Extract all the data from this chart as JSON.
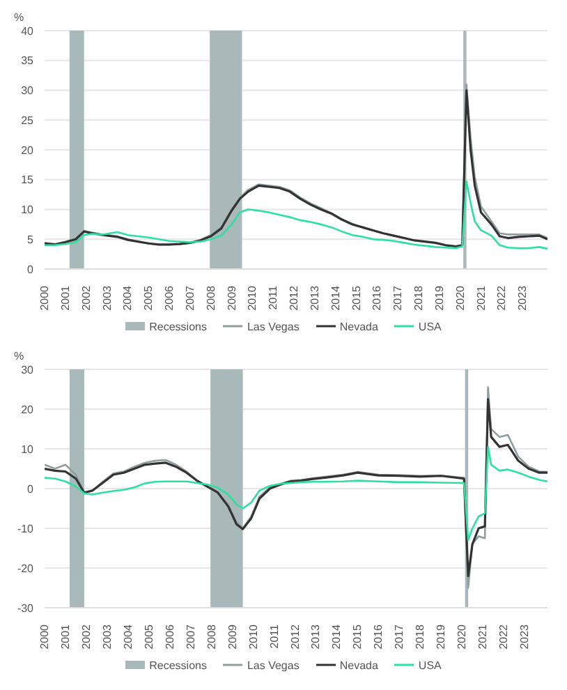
{
  "chart_data": [
    {
      "type": "line",
      "ylabel": "%",
      "legend": "bottom",
      "grid": "y",
      "marker": "none",
      "line_style": "solid",
      "xlim": [
        2000,
        2024.2
      ],
      "xticks": [
        2000,
        2001,
        2002,
        2003,
        2004,
        2005,
        2006,
        2007,
        2008,
        2009,
        2010,
        2011,
        2012,
        2013,
        2014,
        2015,
        2016,
        2017,
        2018,
        2019,
        2020,
        2021,
        2022,
        2023
      ],
      "ylim": [
        0,
        40
      ],
      "yticks": [
        0,
        5,
        10,
        15,
        20,
        25,
        30,
        35,
        40
      ],
      "bands": [
        {
          "axis": "x",
          "from": 2001.2,
          "to": 2001.9,
          "label": "Recessions",
          "color": "#a9b9b9"
        },
        {
          "axis": "x",
          "from": 2007.95,
          "to": 2009.5,
          "color": "#a9b9b9"
        },
        {
          "axis": "x",
          "from": 2020.15,
          "to": 2020.3,
          "color": "#a9b9b9"
        }
      ],
      "x": [
        2000,
        2000.5,
        2001,
        2001.5,
        2001.9,
        2002.3,
        2002.8,
        2003.5,
        2004,
        2004.5,
        2005,
        2005.5,
        2006,
        2006.5,
        2007,
        2007.5,
        2008,
        2008.5,
        2009,
        2009.4,
        2009.8,
        2010.3,
        2010.8,
        2011.3,
        2011.8,
        2012.3,
        2012.8,
        2013.3,
        2013.8,
        2014.3,
        2014.8,
        2015.3,
        2015.8,
        2016.3,
        2016.8,
        2017.3,
        2017.8,
        2018.3,
        2018.8,
        2019.3,
        2019.8,
        2020.1,
        2020.3,
        2020.5,
        2020.7,
        2021,
        2021.5,
        2021.9,
        2022.3,
        2022.8,
        2023.3,
        2023.8,
        2024.2
      ],
      "series": [
        {
          "name": "Las Vegas",
          "color": "#8f9f9f",
          "values": [
            4.4,
            4.2,
            4.6,
            5.1,
            6.4,
            6.1,
            5.8,
            5.5,
            5.0,
            4.6,
            4.3,
            4.1,
            4.1,
            4.2,
            4.4,
            4.9,
            5.7,
            7.0,
            10.0,
            12.0,
            13.3,
            14.2,
            14.0,
            13.8,
            13.2,
            12.0,
            11.0,
            10.2,
            9.4,
            8.4,
            7.6,
            7.0,
            6.5,
            6.0,
            5.6,
            5.2,
            4.8,
            4.6,
            4.4,
            4.0,
            3.8,
            4.0,
            31.0,
            22.0,
            15.5,
            10.5,
            8.0,
            6.0,
            5.8,
            5.8,
            5.8,
            5.8,
            5.2
          ]
        },
        {
          "name": "Nevada",
          "color": "#333333",
          "values": [
            4.3,
            4.1,
            4.5,
            5.0,
            6.3,
            6.0,
            5.7,
            5.4,
            4.9,
            4.6,
            4.3,
            4.1,
            4.1,
            4.2,
            4.4,
            4.8,
            5.5,
            6.8,
            9.8,
            11.8,
            13.0,
            14.0,
            13.8,
            13.6,
            13.0,
            11.8,
            10.8,
            10.0,
            9.3,
            8.3,
            7.5,
            7.0,
            6.5,
            6.0,
            5.6,
            5.2,
            4.8,
            4.6,
            4.4,
            4.0,
            3.8,
            4.0,
            30.0,
            20.0,
            14.0,
            9.5,
            7.5,
            5.5,
            5.2,
            5.4,
            5.5,
            5.6,
            5.0
          ]
        },
        {
          "name": "USA",
          "color": "#2ee0a0",
          "values": [
            4.0,
            4.0,
            4.2,
            4.5,
            5.7,
            5.9,
            5.8,
            6.2,
            5.7,
            5.5,
            5.3,
            5.0,
            4.7,
            4.6,
            4.5,
            4.6,
            5.0,
            5.6,
            7.5,
            9.5,
            10.0,
            9.8,
            9.5,
            9.1,
            8.7,
            8.2,
            7.9,
            7.5,
            7.0,
            6.3,
            5.7,
            5.4,
            5.0,
            4.9,
            4.7,
            4.4,
            4.1,
            3.9,
            3.7,
            3.6,
            3.5,
            3.8,
            14.7,
            11.1,
            8.0,
            6.5,
            5.6,
            4.0,
            3.6,
            3.5,
            3.5,
            3.7,
            3.4
          ]
        }
      ]
    },
    {
      "type": "line",
      "ylabel": "%",
      "legend": "bottom",
      "grid": "y",
      "marker": "none",
      "line_style": "solid",
      "xlim": [
        2000,
        2024.1
      ],
      "xticks": [
        2000,
        2001,
        2002,
        2003,
        2004,
        2005,
        2006,
        2007,
        2008,
        2009,
        2010,
        2011,
        2012,
        2013,
        2014,
        2015,
        2016,
        2017,
        2018,
        2019,
        2020,
        2021,
        2022,
        2023
      ],
      "ylim": [
        -30,
        30
      ],
      "yticks": [
        -30,
        -20,
        -10,
        0,
        10,
        20,
        30
      ],
      "bands": [
        {
          "axis": "x",
          "from": 2001.2,
          "to": 2001.9,
          "label": "Recessions",
          "color": "#a9b9b9"
        },
        {
          "axis": "x",
          "from": 2007.95,
          "to": 2009.5,
          "color": "#a9b9b9"
        },
        {
          "axis": "x",
          "from": 2020.15,
          "to": 2020.3,
          "color": "#a9b9b9"
        }
      ],
      "x": [
        2000,
        2000.5,
        2001,
        2001.5,
        2001.9,
        2002.3,
        2002.8,
        2003.3,
        2003.8,
        2004.3,
        2004.8,
        2005.3,
        2005.8,
        2006.3,
        2006.8,
        2007.3,
        2007.8,
        2008.3,
        2008.8,
        2009.2,
        2009.5,
        2009.9,
        2010.3,
        2010.8,
        2011.3,
        2011.8,
        2012.3,
        2012.8,
        2013.5,
        2014.3,
        2015,
        2016,
        2017,
        2018,
        2019,
        2020.1,
        2020.3,
        2020.5,
        2020.8,
        2021.1,
        2021.25,
        2021.4,
        2021.8,
        2022.2,
        2022.7,
        2023.2,
        2023.7,
        2024.1
      ],
      "series": [
        {
          "name": "Las Vegas",
          "color": "#8f9f9f",
          "values": [
            6,
            5.0,
            6.0,
            3.5,
            -1.0,
            -0.5,
            1.8,
            3.8,
            4.3,
            5.5,
            6.5,
            7.0,
            7.2,
            6.0,
            4.3,
            2.0,
            0.5,
            -1.0,
            -4.0,
            -8.5,
            -10.0,
            -7.0,
            -2.0,
            0.3,
            1.2,
            2.0,
            2.2,
            2.6,
            3.0,
            3.5,
            4.2,
            3.5,
            3.4,
            3.2,
            3.3,
            2.7,
            -25,
            -14,
            -12,
            -12.5,
            25.5,
            15,
            13,
            13.5,
            8,
            5.5,
            4.3,
            4.2
          ]
        },
        {
          "name": "Nevada",
          "color": "#333333",
          "values": [
            5,
            4.5,
            4.3,
            2.5,
            -1.0,
            -0.5,
            1.5,
            3.5,
            4.0,
            5.0,
            6.0,
            6.3,
            6.5,
            5.5,
            4.0,
            2.0,
            0.5,
            -1.0,
            -4.5,
            -9.0,
            -10.2,
            -7.5,
            -2.5,
            0.0,
            1.0,
            1.8,
            2.0,
            2.4,
            2.8,
            3.3,
            4.0,
            3.3,
            3.2,
            3.0,
            3.2,
            2.5,
            -22,
            -14,
            -10,
            -9.5,
            22.5,
            13,
            10.5,
            11,
            7,
            5,
            4,
            4.0
          ]
        },
        {
          "name": "USA",
          "color": "#2ee0a0",
          "values": [
            2.7,
            2.5,
            1.8,
            0.5,
            -1.2,
            -1.5,
            -1.0,
            -0.6,
            -0.3,
            0.3,
            1.3,
            1.7,
            1.8,
            1.8,
            1.8,
            1.4,
            1.0,
            0.2,
            -1.5,
            -4.0,
            -5.0,
            -3.5,
            -0.5,
            0.7,
            1.2,
            1.4,
            1.6,
            1.7,
            1.7,
            1.8,
            2.0,
            1.8,
            1.6,
            1.6,
            1.5,
            1.4,
            -13,
            -10,
            -7,
            -6.2,
            10.5,
            6,
            4.5,
            4.8,
            4.0,
            3.0,
            2.2,
            1.8
          ]
        }
      ]
    }
  ]
}
